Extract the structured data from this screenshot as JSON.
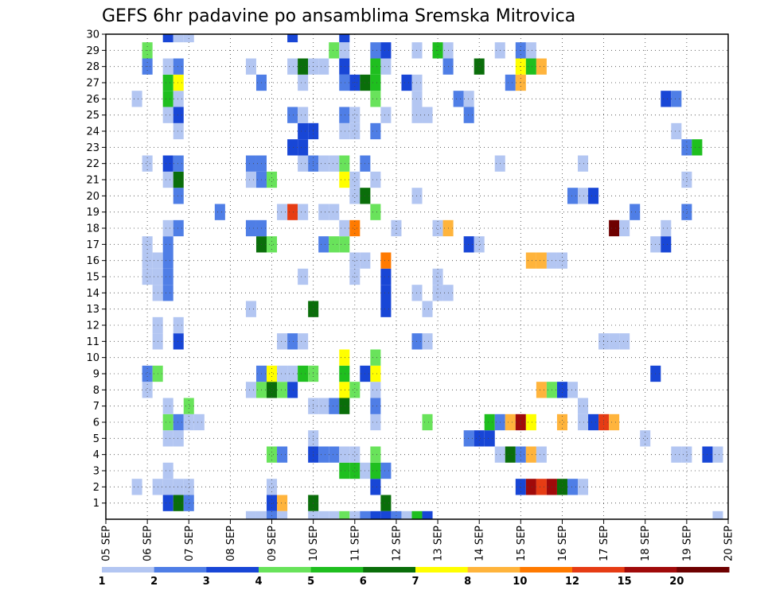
{
  "chart_data": {
    "type": "heatmap",
    "title": "GEFS 6hr padavine po ansamblima Sremska Mitrovica",
    "xlabel": "",
    "ylabel": "",
    "x_tick_labels": [
      "05 SEP",
      "06 SEP",
      "07 SEP",
      "08 SEP",
      "09 SEP",
      "10 SEP",
      "11 SEP",
      "12 SEP",
      "13 SEP",
      "14 SEP",
      "15 SEP",
      "16 SEP",
      "17 SEP",
      "18 SEP",
      "19 SEP",
      "20 SEP"
    ],
    "y_tick_labels": [
      "1",
      "2",
      "3",
      "4",
      "5",
      "6",
      "7",
      "8",
      "9",
      "10",
      "11",
      "12",
      "13",
      "14",
      "15",
      "16",
      "17",
      "18",
      "19",
      "20",
      "21",
      "22",
      "23",
      "24",
      "25",
      "26",
      "27",
      "28",
      "29",
      "30"
    ],
    "x_range": [
      0,
      60
    ],
    "y_range": [
      0,
      30
    ],
    "grid": true,
    "colorbar": {
      "labels": [
        "1",
        "2",
        "3",
        "4",
        "5",
        "6",
        "7",
        "8",
        "10",
        "12",
        "15",
        "20"
      ],
      "colors": [
        "#b3c6f2",
        "#4f7ee6",
        "#1846d6",
        "#69e35b",
        "#1fbf1f",
        "#0a6e0a",
        "#ffff00",
        "#ffb43c",
        "#ff7a00",
        "#e63c14",
        "#a00a0a",
        "#6e0000"
      ]
    },
    "cells_note": "each cell: [x_step (6h from 05 SEP 00Z), member, color_class 1-12]",
    "cells": [
      [
        6,
        1,
        3
      ],
      [
        7,
        1,
        6
      ],
      [
        8,
        1,
        2
      ],
      [
        16,
        1,
        3
      ],
      [
        17,
        1,
        8
      ],
      [
        20,
        1,
        6
      ],
      [
        27,
        1,
        6
      ],
      [
        3,
        2,
        1
      ],
      [
        5,
        2,
        1
      ],
      [
        6,
        2,
        1
      ],
      [
        7,
        2,
        1
      ],
      [
        8,
        2,
        1
      ],
      [
        16,
        2,
        1
      ],
      [
        26,
        2,
        3
      ],
      [
        40,
        2,
        3
      ],
      [
        41,
        2,
        11
      ],
      [
        42,
        2,
        10
      ],
      [
        43,
        2,
        11
      ],
      [
        44,
        2,
        6
      ],
      [
        45,
        2,
        2
      ],
      [
        46,
        2,
        1
      ],
      [
        6,
        3,
        1
      ],
      [
        23,
        3,
        5
      ],
      [
        24,
        3,
        5
      ],
      [
        25,
        3,
        1
      ],
      [
        26,
        3,
        5
      ],
      [
        27,
        3,
        2
      ],
      [
        16,
        4,
        4
      ],
      [
        17,
        4,
        2
      ],
      [
        20,
        4,
        3
      ],
      [
        21,
        4,
        2
      ],
      [
        22,
        4,
        2
      ],
      [
        23,
        4,
        1
      ],
      [
        24,
        4,
        1
      ],
      [
        26,
        4,
        4
      ],
      [
        38,
        4,
        1
      ],
      [
        39,
        4,
        6
      ],
      [
        40,
        4,
        2
      ],
      [
        41,
        4,
        8
      ],
      [
        42,
        4,
        1
      ],
      [
        55,
        4,
        1
      ],
      [
        56,
        4,
        1
      ],
      [
        58,
        4,
        3
      ],
      [
        59,
        4,
        1
      ],
      [
        6,
        5,
        1
      ],
      [
        7,
        5,
        1
      ],
      [
        20,
        5,
        1
      ],
      [
        35,
        5,
        2
      ],
      [
        36,
        5,
        3
      ],
      [
        37,
        5,
        3
      ],
      [
        52,
        5,
        1
      ],
      [
        6,
        6,
        4
      ],
      [
        7,
        6,
        2
      ],
      [
        8,
        6,
        1
      ],
      [
        9,
        6,
        1
      ],
      [
        26,
        6,
        1
      ],
      [
        31,
        6,
        4
      ],
      [
        37,
        6,
        5
      ],
      [
        38,
        6,
        2
      ],
      [
        39,
        6,
        8
      ],
      [
        40,
        6,
        11
      ],
      [
        41,
        6,
        7
      ],
      [
        44,
        6,
        8
      ],
      [
        46,
        6,
        1
      ],
      [
        47,
        6,
        3
      ],
      [
        48,
        6,
        10
      ],
      [
        49,
        6,
        8
      ],
      [
        6,
        7,
        1
      ],
      [
        8,
        7,
        4
      ],
      [
        20,
        7,
        1
      ],
      [
        21,
        7,
        1
      ],
      [
        22,
        7,
        2
      ],
      [
        23,
        7,
        6
      ],
      [
        26,
        7,
        2
      ],
      [
        46,
        7,
        1
      ],
      [
        4,
        8,
        1
      ],
      [
        14,
        8,
        1
      ],
      [
        15,
        8,
        4
      ],
      [
        16,
        8,
        6
      ],
      [
        17,
        8,
        4
      ],
      [
        18,
        8,
        3
      ],
      [
        23,
        8,
        7
      ],
      [
        24,
        8,
        4
      ],
      [
        26,
        8,
        1
      ],
      [
        42,
        8,
        8
      ],
      [
        43,
        8,
        4
      ],
      [
        44,
        8,
        3
      ],
      [
        45,
        8,
        1
      ],
      [
        4,
        9,
        2
      ],
      [
        5,
        9,
        4
      ],
      [
        15,
        9,
        2
      ],
      [
        16,
        9,
        7
      ],
      [
        17,
        9,
        1
      ],
      [
        18,
        9,
        1
      ],
      [
        19,
        9,
        5
      ],
      [
        20,
        9,
        4
      ],
      [
        23,
        9,
        5
      ],
      [
        25,
        9,
        3
      ],
      [
        26,
        9,
        7
      ],
      [
        53,
        9,
        3
      ],
      [
        23,
        10,
        7
      ],
      [
        26,
        10,
        4
      ],
      [
        5,
        11,
        1
      ],
      [
        7,
        11,
        3
      ],
      [
        17,
        11,
        1
      ],
      [
        18,
        11,
        2
      ],
      [
        19,
        11,
        1
      ],
      [
        30,
        11,
        2
      ],
      [
        31,
        11,
        1
      ],
      [
        48,
        11,
        1
      ],
      [
        49,
        11,
        1
      ],
      [
        50,
        11,
        1
      ],
      [
        5,
        12,
        1
      ],
      [
        7,
        12,
        1
      ],
      [
        14,
        13,
        1
      ],
      [
        20,
        13,
        6
      ],
      [
        27,
        13,
        3
      ],
      [
        31,
        13,
        1
      ],
      [
        5,
        14,
        1
      ],
      [
        6,
        14,
        2
      ],
      [
        27,
        14,
        3
      ],
      [
        30,
        14,
        1
      ],
      [
        32,
        14,
        1
      ],
      [
        33,
        14,
        1
      ],
      [
        4,
        15,
        1
      ],
      [
        5,
        15,
        1
      ],
      [
        6,
        15,
        2
      ],
      [
        19,
        15,
        1
      ],
      [
        24,
        15,
        1
      ],
      [
        27,
        15,
        3
      ],
      [
        32,
        15,
        1
      ],
      [
        4,
        16,
        1
      ],
      [
        5,
        16,
        1
      ],
      [
        6,
        16,
        2
      ],
      [
        24,
        16,
        1
      ],
      [
        25,
        16,
        1
      ],
      [
        27,
        16,
        9
      ],
      [
        41,
        16,
        8
      ],
      [
        42,
        16,
        8
      ],
      [
        43,
        16,
        1
      ],
      [
        44,
        16,
        1
      ],
      [
        4,
        17,
        1
      ],
      [
        6,
        17,
        2
      ],
      [
        15,
        17,
        6
      ],
      [
        16,
        17,
        4
      ],
      [
        21,
        17,
        2
      ],
      [
        22,
        17,
        4
      ],
      [
        23,
        17,
        4
      ],
      [
        35,
        17,
        3
      ],
      [
        36,
        17,
        1
      ],
      [
        53,
        17,
        1
      ],
      [
        54,
        17,
        3
      ],
      [
        6,
        18,
        1
      ],
      [
        7,
        18,
        2
      ],
      [
        14,
        18,
        2
      ],
      [
        15,
        18,
        2
      ],
      [
        23,
        18,
        1
      ],
      [
        24,
        18,
        9
      ],
      [
        28,
        18,
        1
      ],
      [
        32,
        18,
        1
      ],
      [
        33,
        18,
        8
      ],
      [
        49,
        18,
        12
      ],
      [
        50,
        18,
        1
      ],
      [
        54,
        18,
        1
      ],
      [
        11,
        19,
        2
      ],
      [
        17,
        19,
        1
      ],
      [
        18,
        19,
        10
      ],
      [
        19,
        19,
        1
      ],
      [
        21,
        19,
        1
      ],
      [
        22,
        19,
        1
      ],
      [
        26,
        19,
        4
      ],
      [
        51,
        19,
        2
      ],
      [
        56,
        19,
        2
      ],
      [
        7,
        20,
        2
      ],
      [
        24,
        20,
        1
      ],
      [
        25,
        20,
        6
      ],
      [
        30,
        20,
        1
      ],
      [
        45,
        20,
        2
      ],
      [
        46,
        20,
        1
      ],
      [
        47,
        20,
        3
      ],
      [
        6,
        21,
        1
      ],
      [
        7,
        21,
        6
      ],
      [
        14,
        21,
        1
      ],
      [
        15,
        21,
        2
      ],
      [
        16,
        21,
        4
      ],
      [
        23,
        21,
        7
      ],
      [
        24,
        21,
        1
      ],
      [
        26,
        21,
        1
      ],
      [
        56,
        21,
        1
      ],
      [
        4,
        22,
        1
      ],
      [
        6,
        22,
        3
      ],
      [
        7,
        22,
        2
      ],
      [
        14,
        22,
        2
      ],
      [
        15,
        22,
        2
      ],
      [
        19,
        22,
        1
      ],
      [
        20,
        22,
        2
      ],
      [
        21,
        22,
        1
      ],
      [
        22,
        22,
        1
      ],
      [
        23,
        22,
        4
      ],
      [
        25,
        22,
        2
      ],
      [
        38,
        22,
        1
      ],
      [
        46,
        22,
        1
      ],
      [
        18,
        23,
        3
      ],
      [
        19,
        23,
        3
      ],
      [
        56,
        23,
        2
      ],
      [
        57,
        23,
        5
      ],
      [
        7,
        24,
        1
      ],
      [
        19,
        24,
        3
      ],
      [
        20,
        24,
        3
      ],
      [
        23,
        24,
        1
      ],
      [
        24,
        24,
        1
      ],
      [
        26,
        24,
        2
      ],
      [
        55,
        24,
        1
      ],
      [
        6,
        25,
        1
      ],
      [
        7,
        25,
        3
      ],
      [
        18,
        25,
        2
      ],
      [
        19,
        25,
        1
      ],
      [
        23,
        25,
        2
      ],
      [
        24,
        25,
        1
      ],
      [
        27,
        25,
        1
      ],
      [
        30,
        25,
        1
      ],
      [
        31,
        25,
        1
      ],
      [
        35,
        25,
        2
      ],
      [
        3,
        26,
        1
      ],
      [
        6,
        26,
        5
      ],
      [
        7,
        26,
        1
      ],
      [
        26,
        26,
        4
      ],
      [
        30,
        26,
        1
      ],
      [
        34,
        26,
        2
      ],
      [
        35,
        26,
        1
      ],
      [
        54,
        26,
        3
      ],
      [
        55,
        26,
        2
      ],
      [
        6,
        27,
        5
      ],
      [
        7,
        27,
        7
      ],
      [
        15,
        27,
        2
      ],
      [
        19,
        27,
        1
      ],
      [
        23,
        27,
        2
      ],
      [
        24,
        27,
        3
      ],
      [
        25,
        27,
        6
      ],
      [
        26,
        27,
        5
      ],
      [
        29,
        27,
        3
      ],
      [
        30,
        27,
        1
      ],
      [
        39,
        27,
        2
      ],
      [
        40,
        27,
        8
      ],
      [
        4,
        28,
        2
      ],
      [
        6,
        28,
        1
      ],
      [
        7,
        28,
        2
      ],
      [
        14,
        28,
        1
      ],
      [
        18,
        28,
        1
      ],
      [
        19,
        28,
        6
      ],
      [
        20,
        28,
        1
      ],
      [
        21,
        28,
        1
      ],
      [
        23,
        28,
        3
      ],
      [
        26,
        28,
        5
      ],
      [
        27,
        28,
        1
      ],
      [
        33,
        28,
        2
      ],
      [
        36,
        28,
        6
      ],
      [
        40,
        28,
        7
      ],
      [
        41,
        28,
        5
      ],
      [
        42,
        28,
        8
      ],
      [
        4,
        29,
        4
      ],
      [
        22,
        29,
        4
      ],
      [
        23,
        29,
        1
      ],
      [
        26,
        29,
        2
      ],
      [
        27,
        29,
        3
      ],
      [
        30,
        29,
        1
      ],
      [
        32,
        29,
        5
      ],
      [
        33,
        29,
        1
      ],
      [
        38,
        29,
        1
      ],
      [
        40,
        29,
        2
      ],
      [
        41,
        29,
        1
      ],
      [
        6,
        30,
        3
      ],
      [
        7,
        30,
        1
      ],
      [
        8,
        30,
        1
      ],
      [
        18,
        30,
        3
      ],
      [
        23,
        30,
        3
      ],
      [
        14,
        0,
        1
      ],
      [
        15,
        0,
        1
      ],
      [
        16,
        0,
        2
      ],
      [
        17,
        0,
        1
      ],
      [
        20,
        0,
        1
      ],
      [
        21,
        0,
        1
      ],
      [
        22,
        0,
        1
      ],
      [
        23,
        0,
        4
      ],
      [
        24,
        0,
        1
      ],
      [
        25,
        0,
        2
      ],
      [
        26,
        0,
        3
      ],
      [
        27,
        0,
        3
      ],
      [
        28,
        0,
        2
      ],
      [
        29,
        0,
        1
      ],
      [
        30,
        0,
        5
      ],
      [
        31,
        0,
        3
      ],
      [
        59,
        0,
        1
      ]
    ]
  }
}
